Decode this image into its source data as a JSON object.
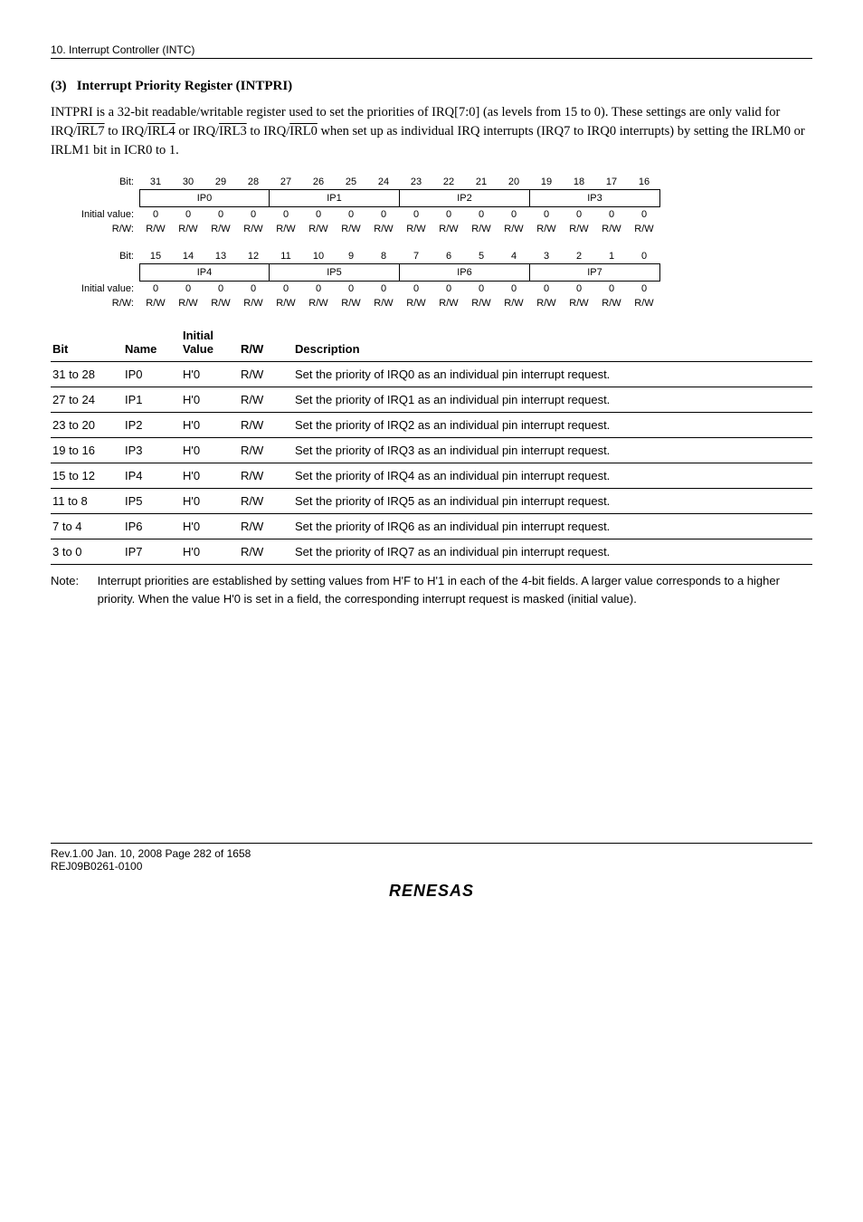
{
  "header": {
    "chapter": "10.   Interrupt Controller (INTC)"
  },
  "section": {
    "number": "(3)",
    "name": "Interrupt Priority Register (INTPRI)"
  },
  "paragraph": {
    "pre": "INTPRI is a 32-bit readable/writable register used to set the priorities of IRQ[7:0] (as levels from 15 to 0). These settings are only valid for IRQ/",
    "irl7": "IRL7",
    "mid1": " to IRQ/",
    "irl4": "IRL4",
    "mid2": " or IRQ/",
    "irl3": "IRL3",
    "mid3": " to IRQ/",
    "irl0": "IRL0",
    "post": " when set up as individual IRQ interrupts (IRQ7 to IRQ0 interrupts) by setting the IRLM0 or IRLM1 bit in ICR0 to 1."
  },
  "reg": {
    "labels": {
      "bit": "Bit:",
      "initial": "Initial value:",
      "rw": "R/W:"
    },
    "top": {
      "bits": [
        "31",
        "30",
        "29",
        "28",
        "27",
        "26",
        "25",
        "24",
        "23",
        "22",
        "21",
        "20",
        "19",
        "18",
        "17",
        "16"
      ],
      "names": [
        "IP0",
        "IP1",
        "IP2",
        "IP3"
      ],
      "init": [
        "0",
        "0",
        "0",
        "0",
        "0",
        "0",
        "0",
        "0",
        "0",
        "0",
        "0",
        "0",
        "0",
        "0",
        "0",
        "0"
      ],
      "rw": [
        "R/W",
        "R/W",
        "R/W",
        "R/W",
        "R/W",
        "R/W",
        "R/W",
        "R/W",
        "R/W",
        "R/W",
        "R/W",
        "R/W",
        "R/W",
        "R/W",
        "R/W",
        "R/W"
      ]
    },
    "bot": {
      "bits": [
        "15",
        "14",
        "13",
        "12",
        "11",
        "10",
        "9",
        "8",
        "7",
        "6",
        "5",
        "4",
        "3",
        "2",
        "1",
        "0"
      ],
      "names": [
        "IP4",
        "IP5",
        "IP6",
        "IP7"
      ],
      "init": [
        "0",
        "0",
        "0",
        "0",
        "0",
        "0",
        "0",
        "0",
        "0",
        "0",
        "0",
        "0",
        "0",
        "0",
        "0",
        "0"
      ],
      "rw": [
        "R/W",
        "R/W",
        "R/W",
        "R/W",
        "R/W",
        "R/W",
        "R/W",
        "R/W",
        "R/W",
        "R/W",
        "R/W",
        "R/W",
        "R/W",
        "R/W",
        "R/W",
        "R/W"
      ]
    }
  },
  "table": {
    "headers": {
      "bit": "Bit",
      "name": "Name",
      "iv": "Initial\nValue",
      "rw": "R/W",
      "desc": "Description"
    },
    "rows": [
      {
        "bit": "31 to 28",
        "name": "IP0",
        "iv": "H'0",
        "rw": "R/W",
        "desc": "Set the priority of IRQ0 as an individual pin interrupt request."
      },
      {
        "bit": "27 to 24",
        "name": "IP1",
        "iv": "H'0",
        "rw": "R/W",
        "desc": "Set the priority of IRQ1 as an individual pin interrupt request."
      },
      {
        "bit": "23 to 20",
        "name": "IP2",
        "iv": "H'0",
        "rw": "R/W",
        "desc": "Set the priority of IRQ2 as an individual pin interrupt request."
      },
      {
        "bit": "19 to 16",
        "name": "IP3",
        "iv": "H'0",
        "rw": "R/W",
        "desc": "Set the priority of IRQ3 as an individual pin interrupt request."
      },
      {
        "bit": "15 to 12",
        "name": "IP4",
        "iv": "H'0",
        "rw": "R/W",
        "desc": "Set the priority of IRQ4 as an individual pin interrupt request."
      },
      {
        "bit": "11 to 8",
        "name": "IP5",
        "iv": "H'0",
        "rw": "R/W",
        "desc": "Set the priority of IRQ5 as an individual pin interrupt request."
      },
      {
        "bit": "7 to 4",
        "name": "IP6",
        "iv": "H'0",
        "rw": "R/W",
        "desc": "Set the priority of IRQ6 as an individual pin interrupt request."
      },
      {
        "bit": "3 to 0",
        "name": "IP7",
        "iv": "H'0",
        "rw": "R/W",
        "desc": "Set the priority of IRQ7 as an individual pin interrupt request."
      }
    ]
  },
  "note": {
    "label": "Note:",
    "text": "Interrupt priorities are established by setting values from H'F to H'1 in each of the 4-bit fields. A larger value corresponds to a higher priority. When the value H'0 is set in a field, the corresponding interrupt request is masked (initial value)."
  },
  "footer": {
    "line1": "Rev.1.00  Jan. 10, 2008  Page 282 of 1658",
    "line2": "REJ09B0261-0100",
    "logo": "RENESAS"
  }
}
